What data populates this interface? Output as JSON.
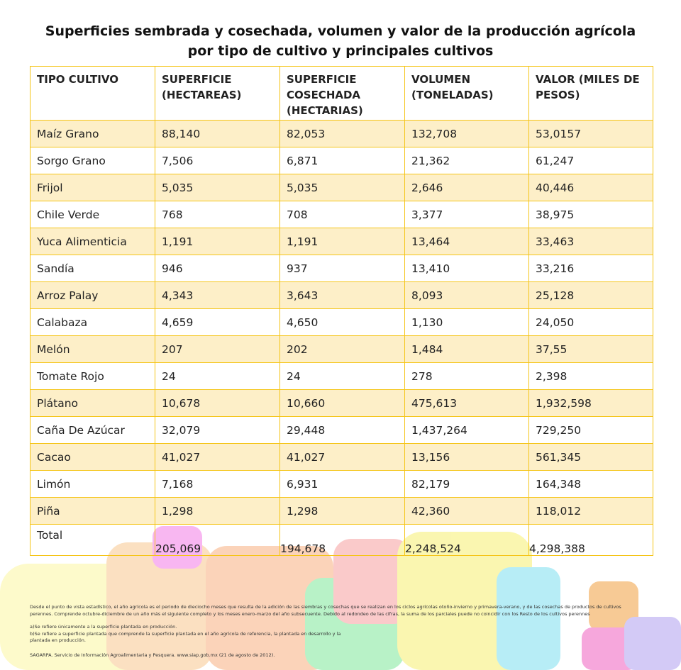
{
  "title": [
    "Superficies sembrada y cosechada, volumen y valor de la producción agrícola",
    "por tipo de cultivo y principales cultivos"
  ],
  "table": {
    "header": [
      "TIPO CULTIVO",
      "SUPERFICIE (HECTAREAS)",
      "SUPERFICIE COSECHADA (HECTARIAS)",
      "VOLUMEN (TONELADAS)",
      "VALOR (MILES DE PESOS)"
    ],
    "rows": [
      [
        "Maíz Grano",
        "88,140",
        "82,053",
        "132,708",
        "53,0157"
      ],
      [
        "Sorgo Grano",
        "7,506",
        "6,871",
        "21,362",
        "61,247"
      ],
      [
        "Frijol",
        "5,035",
        "5,035",
        "2,646",
        "40,446"
      ],
      [
        "Chile Verde",
        "768",
        "708",
        "3,377",
        "38,975"
      ],
      [
        "Yuca Alimenticia",
        "1,191",
        "1,191",
        "13,464",
        "33,463"
      ],
      [
        "Sandía",
        "946",
        "937",
        "13,410",
        "33,216"
      ],
      [
        "Arroz Palay",
        "4,343",
        "3,643",
        "8,093",
        "25,128"
      ],
      [
        "Calabaza",
        "4,659",
        "4,650",
        "1,130",
        "24,050"
      ],
      [
        "Melón",
        "207",
        "202",
        "1,484",
        "37,55"
      ],
      [
        "Tomate Rojo",
        "24",
        "24",
        "278",
        "2,398"
      ],
      [
        "Plátano",
        "10,678",
        "10,660",
        "475,613",
        "1,932,598"
      ],
      [
        "Caña De Azúcar",
        "32,079",
        "29,448",
        "1,437,264",
        "729,250"
      ],
      [
        "Cacao",
        "41,027",
        "41,027",
        "13,156",
        "561,345"
      ],
      [
        "Limón",
        "7,168",
        "6,931",
        "82,179",
        "164,348"
      ],
      [
        "Piña",
        "1,298",
        "1,298",
        "42,360",
        "118,012"
      ]
    ],
    "total": [
      "Total",
      "205,069",
      "194,678",
      "2,248,524",
      "4,298,388"
    ]
  },
  "notes": [
    "Desde el punto de vista estadístico, el año agrícola es el periodo de dieciocho meses que resulta de la adición de las siembras y cosechas que se realizan en los ciclos agrícolas otoño-invierno y primavera-verano, y de las cosechas de productos de cultivos",
    "perennes. Comprende octubre-diciembre de un año más el siguiente completo y los meses enero-marzo del año subsecuente. Debido al redondeo de las cifras, la suma de los parciales puede no coincidir con los Resto de los cultivos perennes",
    "a)Se refiere únicamente a la superficie plantada en producción.",
    "b)Se refiere a superficie plantada que comprende la superficie plantada en el año agrícola de referencia, la plantada en desarrollo y la",
    "plantada en producción.",
    "SAGARPA. Servicio de Información Agroalimentaria y Pesquera. www.siap.gob.mx (21 de agosto de 2012)."
  ]
}
